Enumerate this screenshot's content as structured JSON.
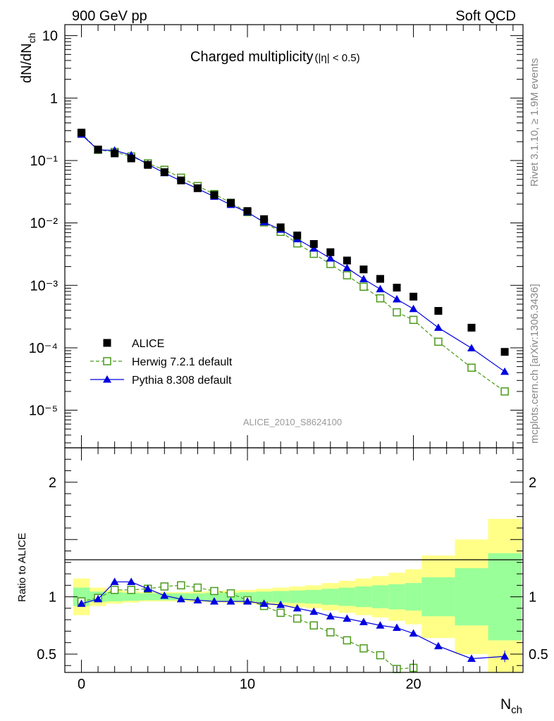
{
  "header": {
    "left": "900 GeV pp",
    "right": "Soft QCD"
  },
  "side": {
    "rivet": "Rivet 3.1.10, ≥ 1.9M events",
    "mcplots": "mcplots.cern.ch [arXiv:1306.3436]"
  },
  "chart_data": [
    {
      "type": "scatter",
      "title": "Charged multiplicity",
      "title_suffix": "(|η| < 0.5)",
      "ylabel_main": "dN/dN",
      "ylabel_sub": "ch",
      "xlabel_main": "N",
      "xlabel_sub": "ch",
      "analysis_id": "ALICE_2010_S8624100",
      "yscale": "log",
      "xlim": [
        -1,
        26.6
      ],
      "ylim": [
        2.5e-06,
        15
      ],
      "y_tick_labels": [
        "10⁻⁵",
        "10⁻⁴",
        "10⁻³",
        "10⁻²",
        "10⁻¹",
        "1",
        "10"
      ],
      "x_tick_labels": [
        "0",
        "10",
        "20"
      ],
      "legend_position": "bottom-left",
      "series": [
        {
          "name": "ALICE",
          "color": "#000000",
          "marker": "filled-square",
          "line": "none",
          "x": [
            0,
            1,
            2,
            3,
            4,
            5,
            6,
            7,
            8,
            9,
            10,
            11,
            12,
            13,
            14,
            15,
            16,
            17,
            18,
            19,
            20,
            21.5,
            23.5,
            25.5
          ],
          "y": [
            0.28,
            0.15,
            0.13,
            0.108,
            0.085,
            0.065,
            0.048,
            0.036,
            0.028,
            0.021,
            0.0155,
            0.0115,
            0.0085,
            0.0063,
            0.0046,
            0.0034,
            0.0025,
            0.0018,
            0.00127,
            0.00092,
            0.00066,
            0.00039,
            0.00021,
            8.6e-05
          ]
        },
        {
          "name": "Herwig 7.2.1 default",
          "color": "#4a9a1a",
          "marker": "open-square",
          "line": "dashed",
          "x": [
            0,
            1,
            2,
            3,
            4,
            5,
            6,
            7,
            8,
            9,
            10,
            11,
            12,
            13,
            14,
            15,
            16,
            17,
            18,
            19,
            20,
            21.5,
            23.5,
            25.5
          ],
          "y": [
            0.27,
            0.148,
            0.137,
            0.116,
            0.09,
            0.071,
            0.053,
            0.039,
            0.029,
            0.021,
            0.0149,
            0.0102,
            0.0072,
            0.0047,
            0.0032,
            0.0022,
            0.00145,
            0.00095,
            0.00062,
            0.00037,
            0.00028,
            0.000125,
            4.8e-05,
            2e-05
          ]
        },
        {
          "name": "Pythia 8.308 default",
          "color": "#0000e0",
          "marker": "filled-triangle",
          "line": "solid",
          "x": [
            0,
            1,
            2,
            3,
            4,
            5,
            6,
            7,
            8,
            9,
            10,
            11,
            12,
            13,
            14,
            15,
            16,
            17,
            18,
            19,
            20,
            21.5,
            23.5,
            25.5
          ],
          "y": [
            0.26,
            0.148,
            0.145,
            0.122,
            0.087,
            0.063,
            0.047,
            0.0353,
            0.0264,
            0.0195,
            0.0148,
            0.0103,
            0.0078,
            0.0055,
            0.0039,
            0.0027,
            0.0019,
            0.00126,
            0.00087,
            0.0006,
            0.00042,
            0.00021,
            9.85e-05,
            4.15e-05
          ]
        }
      ]
    },
    {
      "type": "scatter",
      "ylabel": "Ratio to ALICE",
      "xlim": [
        -1,
        26.6
      ],
      "ylim": [
        0.34,
        2.3
      ],
      "y_tick_labels": [
        "0.5",
        "1",
        "2"
      ],
      "x_tick_labels": [
        "0",
        "10",
        "20"
      ],
      "reference_line": 1,
      "bands": {
        "bins": [
          [
            -0.5,
            0.5
          ],
          [
            0.5,
            1.5
          ],
          [
            1.5,
            2.5
          ],
          [
            2.5,
            3.5
          ],
          [
            3.5,
            4.5
          ],
          [
            4.5,
            5.5
          ],
          [
            5.5,
            6.5
          ],
          [
            6.5,
            7.5
          ],
          [
            7.5,
            8.5
          ],
          [
            8.5,
            9.5
          ],
          [
            9.5,
            10.5
          ],
          [
            10.5,
            11.5
          ],
          [
            11.5,
            12.5
          ],
          [
            12.5,
            13.5
          ],
          [
            13.5,
            14.5
          ],
          [
            14.5,
            15.5
          ],
          [
            15.5,
            16.5
          ],
          [
            16.5,
            17.5
          ],
          [
            17.5,
            18.5
          ],
          [
            18.5,
            19.5
          ],
          [
            19.5,
            20.5
          ],
          [
            20.5,
            22.5
          ],
          [
            22.5,
            24.5
          ],
          [
            24.5,
            26.5
          ]
        ],
        "inner_color": "#99ff99",
        "outer_color": "#ffff88",
        "inner_half_width": [
          0.08,
          0.045,
          0.04,
          0.035,
          0.03,
          0.03,
          0.03,
          0.03,
          0.035,
          0.035,
          0.04,
          0.045,
          0.05,
          0.055,
          0.06,
          0.07,
          0.08,
          0.09,
          0.1,
          0.11,
          0.12,
          0.17,
          0.25,
          0.38
        ],
        "outer_half_width": [
          0.16,
          0.08,
          0.06,
          0.05,
          0.04,
          0.04,
          0.04,
          0.045,
          0.05,
          0.055,
          0.06,
          0.07,
          0.08,
          0.09,
          0.1,
          0.12,
          0.14,
          0.16,
          0.18,
          0.21,
          0.24,
          0.36,
          0.5,
          0.68
        ]
      },
      "series": [
        {
          "name": "Herwig 7.2.1 default",
          "color": "#4a9a1a",
          "marker": "open-square",
          "line": "dashed",
          "x": [
            0,
            1,
            2,
            3,
            4,
            5,
            6,
            7,
            8,
            9,
            10,
            11,
            12,
            13,
            14,
            15,
            16,
            17,
            18,
            19,
            20
          ],
          "y": [
            0.96,
            0.99,
            1.06,
            1.06,
            1.07,
            1.09,
            1.1,
            1.08,
            1.05,
            1.03,
            0.97,
            0.92,
            0.86,
            0.81,
            0.75,
            0.69,
            0.62,
            0.55,
            0.49,
            0.37,
            0.38
          ]
        },
        {
          "name": "Pythia 8.308 default",
          "color": "#0000e0",
          "marker": "filled-triangle",
          "line": "solid",
          "x": [
            0,
            1,
            2,
            3,
            4,
            5,
            6,
            7,
            8,
            9,
            10,
            11,
            12,
            13,
            14,
            15,
            16,
            17,
            18,
            19,
            20,
            21.5,
            23.5,
            25.5
          ],
          "y": [
            0.94,
            0.98,
            1.13,
            1.13,
            1.07,
            1.01,
            0.98,
            0.97,
            0.96,
            0.96,
            0.96,
            0.94,
            0.93,
            0.9,
            0.87,
            0.83,
            0.81,
            0.78,
            0.75,
            0.73,
            0.68,
            0.57,
            0.46,
            0.48
          ],
          "yerr": [
            0.02,
            0.01,
            0.01,
            0.01,
            0.01,
            0.01,
            0.01,
            0.01,
            0.01,
            0.01,
            0.01,
            0.01,
            0.01,
            0.01,
            0.01,
            0.01,
            0.01,
            0.01,
            0.01,
            0.01,
            0.02,
            0.02,
            0.03,
            0.05
          ]
        }
      ]
    }
  ]
}
